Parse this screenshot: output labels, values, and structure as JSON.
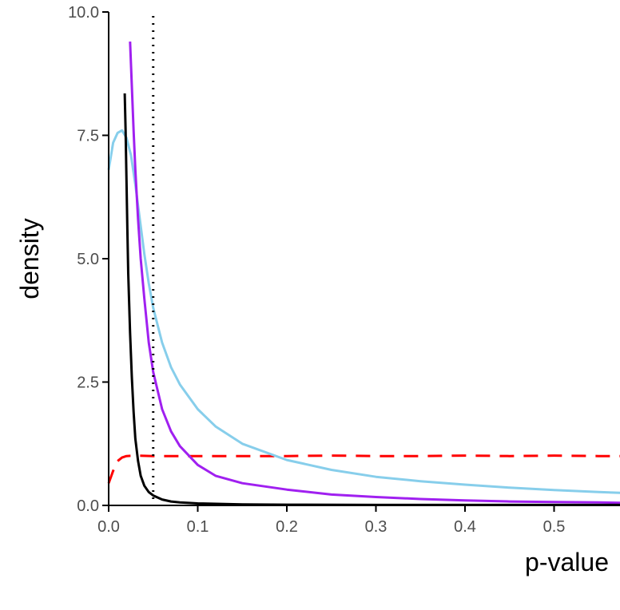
{
  "chart_data": {
    "type": "line",
    "title": "",
    "xlabel": "p-value",
    "ylabel": "density",
    "xlim": [
      0,
      0.58
    ],
    "ylim": [
      0,
      10
    ],
    "x_ticks": [
      "0.0",
      "0.1",
      "0.2",
      "0.3",
      "0.4",
      "0.5"
    ],
    "x_tick_values": [
      0,
      0.1,
      0.2,
      0.3,
      0.4,
      0.5
    ],
    "y_ticks": [
      "0.0",
      "2.5",
      "5.0",
      "7.5",
      "10.0"
    ],
    "y_tick_values": [
      0,
      2.5,
      5,
      7.5,
      10
    ],
    "grid": false,
    "legend": "none",
    "reference_lines": [
      {
        "axis": "x",
        "value": 0.05,
        "style": "dotted",
        "color": "#000000"
      }
    ],
    "series": [
      {
        "color": "#ff0000",
        "style": "dashed",
        "x": [
          0.0,
          0.005,
          0.01,
          0.015,
          0.02,
          0.03,
          0.05,
          0.1,
          0.15,
          0.2,
          0.25,
          0.3,
          0.35,
          0.4,
          0.45,
          0.5,
          0.55,
          0.58
        ],
        "y": [
          0.45,
          0.7,
          0.9,
          0.97,
          1.0,
          1.01,
          1.0,
          1.0,
          1.0,
          1.0,
          1.01,
          1.0,
          1.0,
          1.01,
          1.0,
          1.01,
          1.0,
          1.0
        ]
      },
      {
        "color": "#87ceeb",
        "style": "solid",
        "x": [
          0.0,
          0.005,
          0.01,
          0.015,
          0.02,
          0.025,
          0.03,
          0.035,
          0.04,
          0.045,
          0.05,
          0.06,
          0.07,
          0.08,
          0.1,
          0.12,
          0.15,
          0.2,
          0.25,
          0.3,
          0.35,
          0.4,
          0.45,
          0.5,
          0.55,
          0.58
        ],
        "y": [
          6.8,
          7.35,
          7.55,
          7.6,
          7.45,
          7.1,
          6.5,
          5.8,
          5.1,
          4.5,
          4.0,
          3.3,
          2.8,
          2.45,
          1.95,
          1.6,
          1.25,
          0.92,
          0.72,
          0.58,
          0.49,
          0.42,
          0.36,
          0.31,
          0.27,
          0.25
        ]
      },
      {
        "color": "#a020f0",
        "style": "solid",
        "x": [
          0.024,
          0.026,
          0.028,
          0.03,
          0.033,
          0.036,
          0.04,
          0.045,
          0.05,
          0.06,
          0.07,
          0.08,
          0.1,
          0.12,
          0.15,
          0.2,
          0.25,
          0.3,
          0.35,
          0.4,
          0.45,
          0.5,
          0.55,
          0.58
        ],
        "y": [
          9.4,
          8.5,
          7.6,
          6.8,
          5.8,
          5.0,
          4.2,
          3.3,
          2.7,
          1.95,
          1.5,
          1.2,
          0.82,
          0.6,
          0.45,
          0.32,
          0.22,
          0.17,
          0.13,
          0.1,
          0.08,
          0.07,
          0.06,
          0.05
        ]
      },
      {
        "color": "#000000",
        "style": "solid",
        "x": [
          0.018,
          0.019,
          0.02,
          0.021,
          0.022,
          0.024,
          0.026,
          0.028,
          0.03,
          0.033,
          0.036,
          0.04,
          0.045,
          0.05,
          0.06,
          0.07,
          0.08,
          0.1,
          0.15,
          0.2,
          0.3,
          0.4,
          0.5,
          0.58
        ],
        "y": [
          8.35,
          7.6,
          6.6,
          5.6,
          4.7,
          3.5,
          2.6,
          1.9,
          1.35,
          0.9,
          0.6,
          0.4,
          0.27,
          0.2,
          0.12,
          0.08,
          0.06,
          0.04,
          0.02,
          0.015,
          0.01,
          0.01,
          0.01,
          0.01
        ]
      }
    ]
  }
}
